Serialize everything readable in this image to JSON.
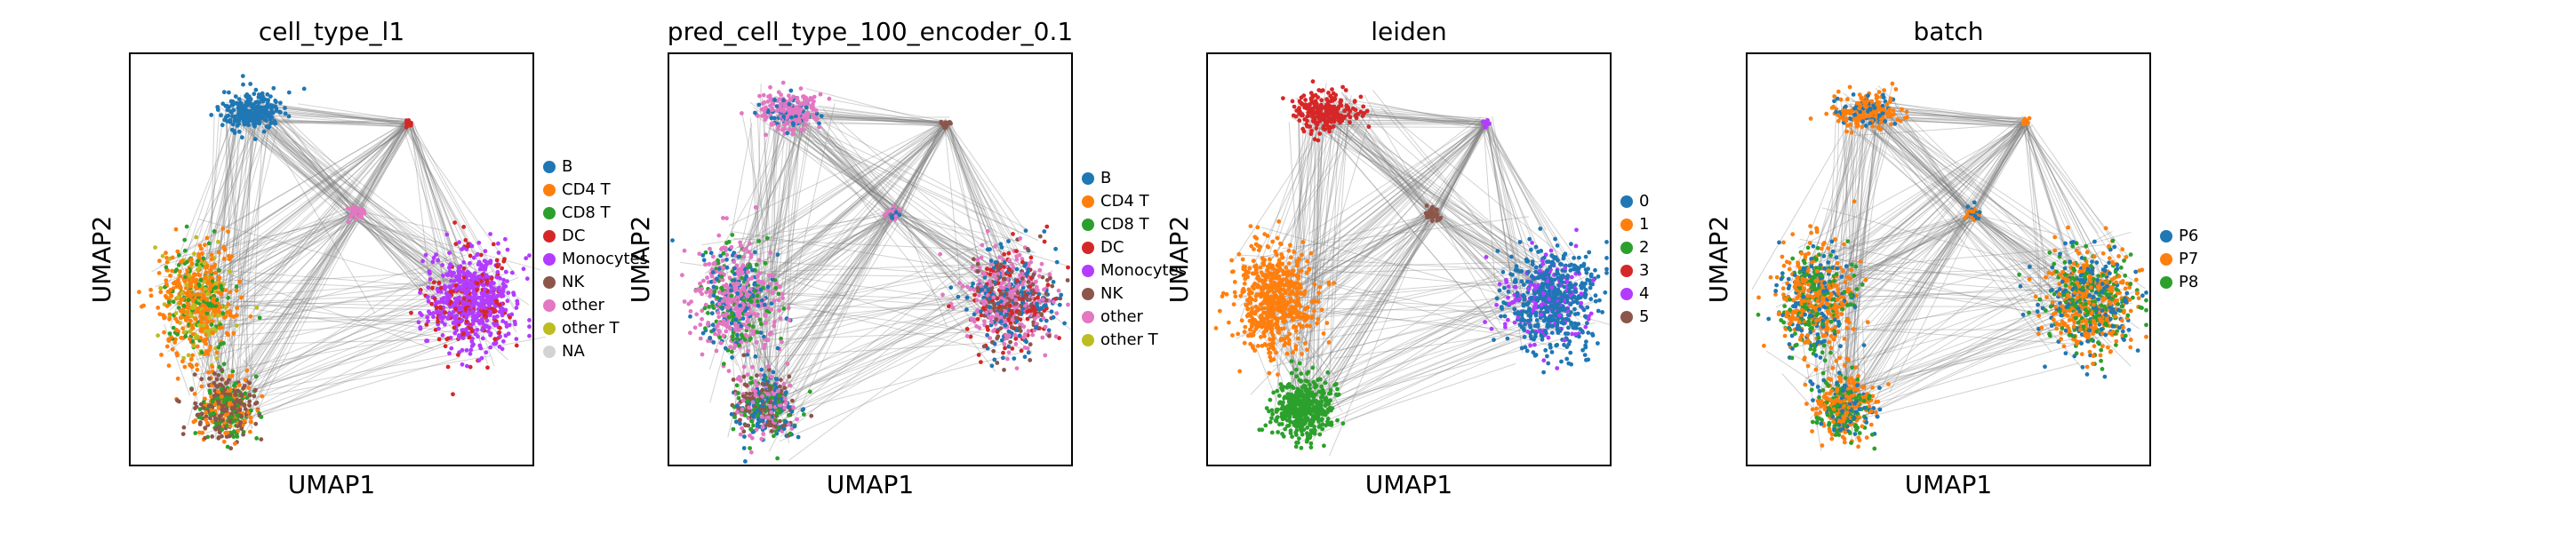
{
  "chart_data": [
    {
      "type": "scatter",
      "title": "cell_type_l1",
      "xlabel": "UMAP1",
      "ylabel": "UMAP2",
      "legend_position": "right",
      "grid": false,
      "overlay": "PAGA graph edges (gray)",
      "categories": [
        {
          "label": "B",
          "color": "#1f77b4"
        },
        {
          "label": "CD4 T",
          "color": "#ff7f0e"
        },
        {
          "label": "CD8 T",
          "color": "#2ca02c"
        },
        {
          "label": "DC",
          "color": "#d62728"
        },
        {
          "label": "Monocytes",
          "color": "#b23cff"
        },
        {
          "label": "NK",
          "color": "#8c564b"
        },
        {
          "label": "other",
          "color": "#e377c2"
        },
        {
          "label": "other T",
          "color": "#bcbd22"
        },
        {
          "label": "NA",
          "color": "#d3d3d3"
        }
      ]
    },
    {
      "type": "scatter",
      "title": "pred_cell_type_100_encoder_0.1",
      "xlabel": "UMAP1",
      "ylabel": "UMAP2",
      "legend_position": "right",
      "grid": false,
      "overlay": "PAGA graph edges (gray)",
      "categories": [
        {
          "label": "B",
          "color": "#1f77b4"
        },
        {
          "label": "CD4 T",
          "color": "#ff7f0e"
        },
        {
          "label": "CD8 T",
          "color": "#2ca02c"
        },
        {
          "label": "DC",
          "color": "#d62728"
        },
        {
          "label": "Monocytes",
          "color": "#b23cff"
        },
        {
          "label": "NK",
          "color": "#8c564b"
        },
        {
          "label": "other",
          "color": "#e377c2"
        },
        {
          "label": "other T",
          "color": "#bcbd22"
        }
      ]
    },
    {
      "type": "scatter",
      "title": "leiden",
      "xlabel": "UMAP1",
      "ylabel": "UMAP2",
      "legend_position": "right",
      "grid": false,
      "overlay": "PAGA graph edges (gray)",
      "categories": [
        {
          "label": "0",
          "color": "#1f77b4"
        },
        {
          "label": "1",
          "color": "#ff7f0e"
        },
        {
          "label": "2",
          "color": "#2ca02c"
        },
        {
          "label": "3",
          "color": "#d62728"
        },
        {
          "label": "4",
          "color": "#b23cff"
        },
        {
          "label": "5",
          "color": "#8c564b"
        }
      ]
    },
    {
      "type": "scatter",
      "title": "batch",
      "xlabel": "UMAP1",
      "ylabel": "UMAP2",
      "legend_position": "right",
      "grid": false,
      "overlay": "PAGA graph edges (gray)",
      "categories": [
        {
          "label": "P6",
          "color": "#1f77b4"
        },
        {
          "label": "P7",
          "color": "#ff7f0e"
        },
        {
          "label": "P8",
          "color": "#2ca02c"
        }
      ]
    }
  ]
}
